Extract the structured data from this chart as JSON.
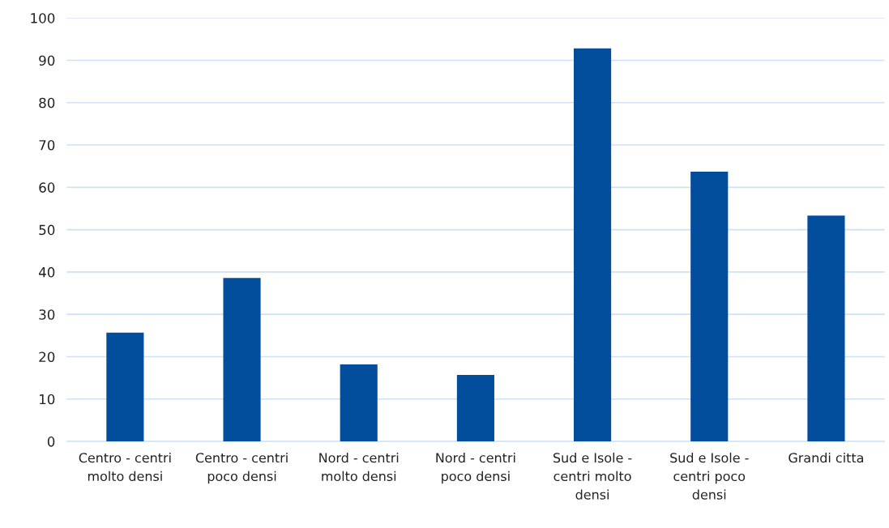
{
  "chart_data": {
    "type": "bar",
    "categories": [
      "Centro - centri\nmolto densi",
      "Centro - centri\npoco densi",
      "Nord - centri\nmolto densi",
      "Nord - centri\npoco densi",
      "Sud e Isole -\ncentri molto\ndensi",
      "Sud e Isole -\ncentri poco\ndensi",
      "Grandi citta"
    ],
    "values": [
      25.7,
      38.6,
      18.2,
      15.7,
      92.8,
      63.7,
      53.3
    ],
    "color": "#024e9c",
    "ylim": [
      0,
      100
    ],
    "yticks": [
      0,
      10,
      20,
      30,
      40,
      50,
      60,
      70,
      80,
      90,
      100
    ],
    "grid": "y"
  }
}
